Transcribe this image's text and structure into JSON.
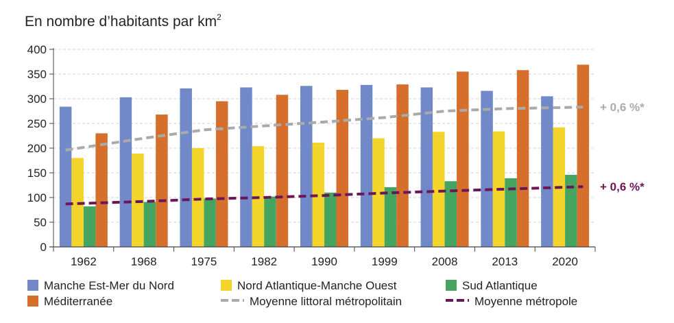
{
  "chart_data": {
    "type": "bar",
    "title": "En nombre d’habitants par km",
    "title_sup": "2",
    "ylim": [
      0,
      400
    ],
    "yticks": [
      0,
      50,
      100,
      150,
      200,
      250,
      300,
      350,
      400
    ],
    "categories": [
      "1962",
      "1968",
      "1975",
      "1982",
      "1990",
      "1999",
      "2008",
      "2013",
      "2020"
    ],
    "series": [
      {
        "name": "Manche Est-Mer du Nord",
        "color": "#7189c8",
        "values": [
          284,
          303,
          321,
          323,
          326,
          328,
          323,
          316,
          305
        ]
      },
      {
        "name": "Nord Atlantique-Manche Ouest",
        "color": "#f2d42b",
        "values": [
          180,
          189,
          200,
          204,
          211,
          220,
          233,
          234,
          242
        ]
      },
      {
        "name": "Sud Atlantique",
        "color": "#45a460",
        "values": [
          82,
          91,
          98,
          102,
          110,
          121,
          133,
          139,
          146
        ]
      },
      {
        "name": "Méditerranée",
        "color": "#d56f2b",
        "values": [
          230,
          268,
          295,
          308,
          318,
          329,
          355,
          358,
          369
        ]
      }
    ],
    "lines": [
      {
        "name": "Moyenne littoral métropolitain",
        "color": "#aaaaaa",
        "values": [
          196,
          220,
          237,
          245,
          253,
          262,
          275,
          280,
          283
        ],
        "label": "+ 0,6 %*"
      },
      {
        "name": "Moyenne métropole",
        "color": "#6b1757",
        "values": [
          87,
          92,
          97,
          100,
          104,
          109,
          113,
          117,
          122
        ],
        "label": "+ 0,6 %*"
      }
    ]
  }
}
